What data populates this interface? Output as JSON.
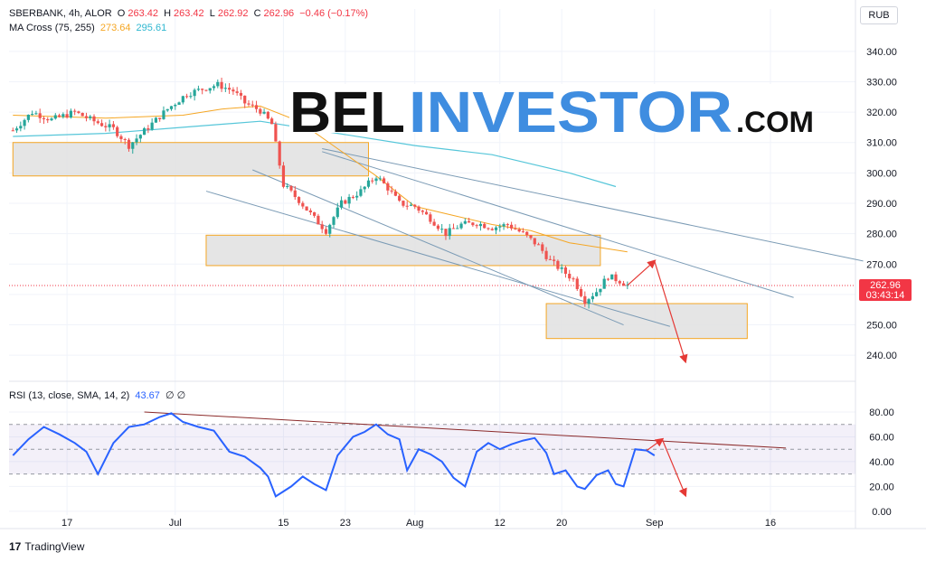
{
  "header": {
    "symbol": "SBERBANK, 4h, ALOR",
    "o_label": "O",
    "o": "263.42",
    "h_label": "H",
    "h": "263.42",
    "l_label": "L",
    "l": "262.92",
    "c_label": "C",
    "c": "262.96",
    "change": "−0.46 (−0.17%)",
    "ma_label": "MA Cross (75, 255)",
    "ma_fast": "273.64",
    "ma_slow": "295.61",
    "currency": "RUB"
  },
  "rsi": {
    "label": "RSI (13, close, SMA, 14, 2)",
    "value": "43.67",
    "extras": "∅ ∅"
  },
  "price_tag": {
    "price": "262.96",
    "countdown": "03:43:14"
  },
  "watermark": {
    "left": "BEL",
    "right": "INVESTOR",
    "suffix": ".COM"
  },
  "footer": {
    "brand": "TradingView",
    "logo": "17"
  },
  "colors": {
    "up": "#26a69a",
    "down": "#ef5350",
    "ma_fast": "#f5a623",
    "ma_slow": "#56c6d9",
    "rsi": "#2962ff",
    "zone_fill": "#e0e0e0",
    "zone_border": "#f5a623",
    "arrow": "#e53935",
    "trendline": "#7b9bb5",
    "rsi_trend": "#8b2a2a",
    "brand_black": "#111111",
    "brand_blue": "#3f8de0"
  },
  "chart_data": [
    {
      "type": "candlestick",
      "y_ticks": [
        340,
        330,
        320,
        310,
        300,
        290,
        280,
        270,
        260,
        250,
        240
      ],
      "y_tick_labels": [
        "340.00",
        "330.00",
        "320.00",
        "310.00",
        "300.00",
        "290.00",
        "280.00",
        "270.00",
        "",
        "250.00",
        "240.00"
      ],
      "ylim": [
        235,
        345
      ],
      "x_ticks": [
        {
          "label": "17",
          "d": 0
        },
        {
          "label": "Jul",
          "d": 14
        },
        {
          "label": "15",
          "d": 28
        },
        {
          "label": "23",
          "d": 36
        },
        {
          "label": "Aug",
          "d": 45
        },
        {
          "label": "12",
          "d": 56
        },
        {
          "label": "20",
          "d": 64
        },
        {
          "label": "Sep",
          "d": 76
        },
        {
          "label": "16",
          "d": 91
        }
      ],
      "xlim": [
        -7.5,
        102
      ],
      "path_points": [
        [
          -7,
          314
        ],
        [
          -4.5,
          320
        ],
        [
          -2,
          317.5
        ],
        [
          1,
          320
        ],
        [
          3.5,
          317
        ],
        [
          6,
          314.5
        ],
        [
          8,
          309
        ],
        [
          10.5,
          315
        ],
        [
          13,
          321
        ],
        [
          15.5,
          326
        ],
        [
          18,
          328
        ],
        [
          19.5,
          329
        ],
        [
          21.5,
          327
        ],
        [
          23,
          323
        ],
        [
          25,
          320.5
        ],
        [
          26.5,
          316
        ],
        [
          28,
          296
        ],
        [
          30,
          291
        ],
        [
          32,
          285
        ],
        [
          33.5,
          281
        ],
        [
          35.5,
          290
        ],
        [
          38,
          294
        ],
        [
          40,
          299
        ],
        [
          41.5,
          295
        ],
        [
          43,
          290
        ],
        [
          45,
          289
        ],
        [
          47,
          285
        ],
        [
          49,
          280
        ],
        [
          51,
          283
        ],
        [
          53,
          283.5
        ],
        [
          55,
          282
        ],
        [
          57,
          283
        ],
        [
          59,
          280
        ],
        [
          61,
          276
        ],
        [
          62.5,
          271
        ],
        [
          64,
          268
        ],
        [
          65.5,
          265
        ],
        [
          67,
          258
        ],
        [
          68.5,
          261
        ],
        [
          70,
          266
        ],
        [
          71.5,
          264.5
        ],
        [
          72.5,
          263
        ]
      ],
      "ma_fast": [
        [
          -7,
          319
        ],
        [
          5,
          318
        ],
        [
          15,
          319
        ],
        [
          20,
          321
        ],
        [
          25,
          322
        ],
        [
          30,
          317
        ],
        [
          35,
          308
        ],
        [
          40,
          299
        ],
        [
          45,
          289
        ],
        [
          50,
          286
        ],
        [
          55,
          283
        ],
        [
          60,
          281
        ],
        [
          65,
          277
        ],
        [
          72.5,
          274
        ]
      ],
      "ma_slow": [
        [
          -7,
          312
        ],
        [
          5,
          313
        ],
        [
          15,
          315
        ],
        [
          25,
          317
        ],
        [
          35,
          313
        ],
        [
          45,
          309
        ],
        [
          55,
          306
        ],
        [
          65,
          300
        ],
        [
          71,
          295.5
        ]
      ],
      "zones": [
        {
          "d0": -7,
          "d1": 39,
          "p0": 310,
          "p1": 299
        },
        {
          "d0": 18,
          "d1": 69,
          "p0": 279.5,
          "p1": 269.5
        },
        {
          "d0": 62,
          "d1": 88,
          "p0": 257,
          "p1": 245.5
        }
      ],
      "last_price": 262.96
    },
    {
      "type": "line",
      "name": "RSI",
      "y_ticks": [
        80,
        60,
        40,
        20,
        0
      ],
      "y_tick_labels": [
        "80.00",
        "60.00",
        "40.00",
        "20.00",
        "0.00"
      ],
      "ylim": [
        -3,
        88
      ],
      "bands": [
        70,
        50,
        30
      ],
      "points": [
        [
          -7,
          45
        ],
        [
          -5,
          58
        ],
        [
          -3,
          68
        ],
        [
          -1,
          62
        ],
        [
          1,
          55
        ],
        [
          2.5,
          48
        ],
        [
          4,
          30
        ],
        [
          6,
          55
        ],
        [
          8,
          68
        ],
        [
          10,
          70
        ],
        [
          12,
          76
        ],
        [
          13.5,
          79
        ],
        [
          15,
          72
        ],
        [
          17,
          68
        ],
        [
          19,
          65
        ],
        [
          21,
          48
        ],
        [
          23,
          44
        ],
        [
          25,
          35
        ],
        [
          26,
          28
        ],
        [
          27,
          12
        ],
        [
          29,
          20
        ],
        [
          30.5,
          28
        ],
        [
          32,
          22
        ],
        [
          33.5,
          17
        ],
        [
          35,
          45
        ],
        [
          37,
          60
        ],
        [
          38.5,
          64
        ],
        [
          40,
          70
        ],
        [
          41.5,
          62
        ],
        [
          43,
          58
        ],
        [
          44,
          33
        ],
        [
          45.5,
          50
        ],
        [
          47,
          46
        ],
        [
          48.5,
          40
        ],
        [
          50,
          27
        ],
        [
          51.5,
          20
        ],
        [
          53,
          48
        ],
        [
          54.5,
          55
        ],
        [
          56,
          50
        ],
        [
          57.5,
          54
        ],
        [
          59,
          57
        ],
        [
          60.5,
          59
        ],
        [
          62,
          47
        ],
        [
          63,
          30
        ],
        [
          64.5,
          33
        ],
        [
          66,
          20
        ],
        [
          67,
          18
        ],
        [
          68.5,
          29
        ],
        [
          70,
          33
        ],
        [
          71,
          22
        ],
        [
          72,
          20
        ],
        [
          73.5,
          50
        ],
        [
          75,
          49
        ],
        [
          76,
          45
        ]
      ]
    }
  ]
}
